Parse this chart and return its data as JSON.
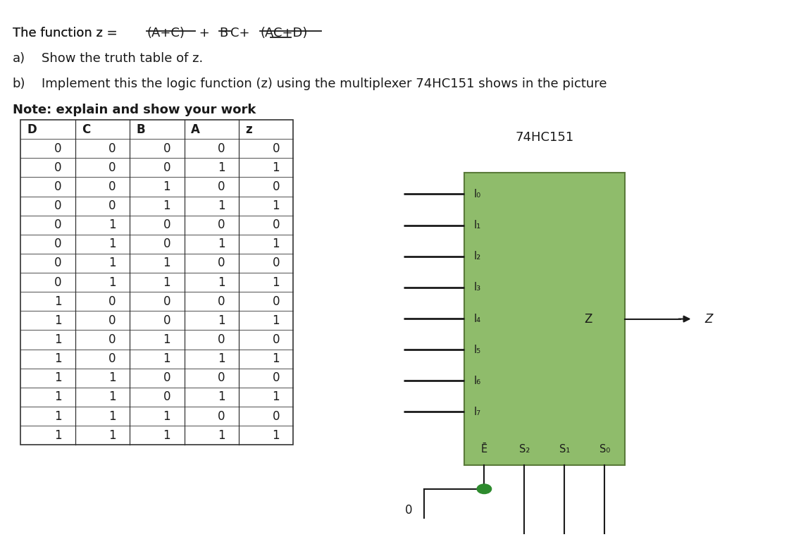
{
  "part_a": "Show the truth table of z.",
  "part_b": "Implement this the logic function (z) using the multiplexer 74HC151 shows in the picture",
  "note_text": "Note: explain and show your work",
  "table_headers": [
    "D",
    "C",
    "B",
    "A",
    "z"
  ],
  "table_data": [
    [
      0,
      0,
      0,
      0,
      0
    ],
    [
      0,
      0,
      0,
      1,
      1
    ],
    [
      0,
      0,
      1,
      0,
      0
    ],
    [
      0,
      0,
      1,
      1,
      1
    ],
    [
      0,
      1,
      0,
      0,
      0
    ],
    [
      0,
      1,
      0,
      1,
      1
    ],
    [
      0,
      1,
      1,
      0,
      0
    ],
    [
      0,
      1,
      1,
      1,
      1
    ],
    [
      1,
      0,
      0,
      0,
      0
    ],
    [
      1,
      0,
      0,
      1,
      1
    ],
    [
      1,
      0,
      1,
      0,
      0
    ],
    [
      1,
      0,
      1,
      1,
      1
    ],
    [
      1,
      1,
      0,
      0,
      0
    ],
    [
      1,
      1,
      0,
      1,
      1
    ],
    [
      1,
      1,
      1,
      0,
      0
    ],
    [
      1,
      1,
      1,
      1,
      1
    ]
  ],
  "mux_title": "74HC151",
  "mux_color": "#8FBC6B",
  "mux_border_color": "#5a7a3a",
  "input_labels": [
    "I₀",
    "I₁",
    "I₂",
    "I₃",
    "I₄",
    "I₅",
    "I₆",
    "I₇"
  ],
  "bottom_labels": [
    "Ē",
    "S₂",
    "S₁",
    "S₀"
  ],
  "wire_color": "#000000",
  "dot_color": "#2e8b2e",
  "bg_color": "#ffffff"
}
